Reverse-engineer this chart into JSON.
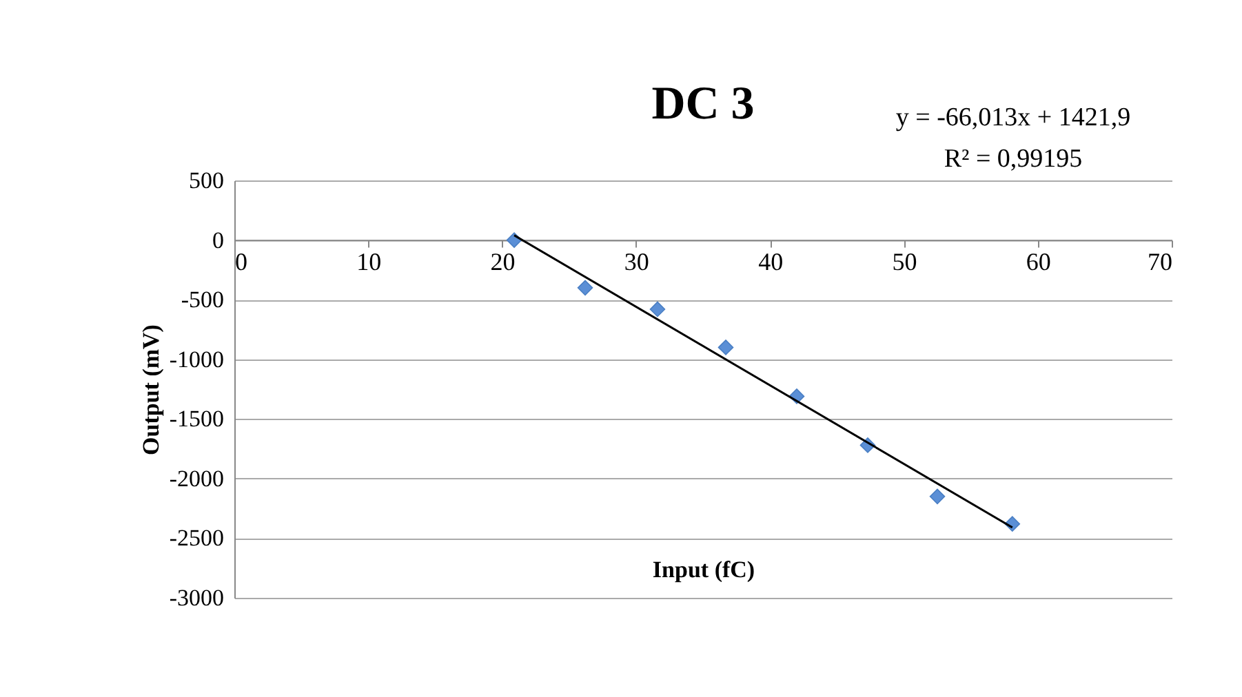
{
  "chart_data": {
    "type": "scatter",
    "title": "DC 3",
    "xlabel": "Input (fC)",
    "ylabel": "Output (mV)",
    "annotations": [
      "y = -66,013x + 1421,9",
      "R² = 0,99195"
    ],
    "xlim": [
      0,
      70
    ],
    "xticks": [
      0,
      10,
      20,
      30,
      40,
      50,
      60,
      70
    ],
    "ylim": [
      -3000,
      500
    ],
    "yticks": [
      -3000,
      -2500,
      -2000,
      -1500,
      -1000,
      -500,
      0,
      500
    ],
    "grid": "y",
    "series": [
      {
        "marker": "diamond",
        "color": "#5b8fd6",
        "x": [
          20.9,
          26.2,
          31.6,
          36.7,
          42.0,
          47.3,
          52.5,
          58.1
        ],
        "values": [
          0,
          -400,
          -580,
          -900,
          -1310,
          -1720,
          -2150,
          -2380
        ]
      },
      {
        "type": "line",
        "color": "#000000",
        "x": [
          20.9,
          58.1
        ],
        "values": [
          40,
          -2410
        ]
      }
    ]
  }
}
